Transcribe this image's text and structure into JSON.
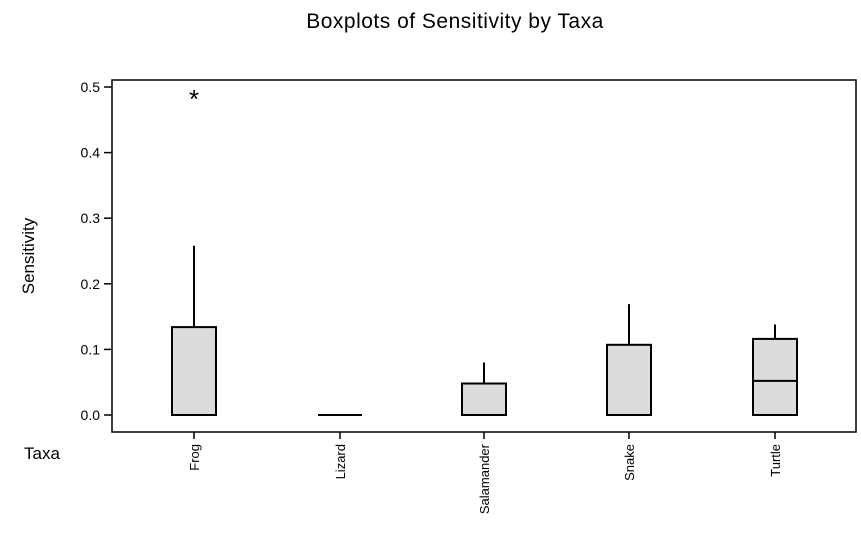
{
  "chart_data": {
    "type": "boxplot",
    "title": "Boxplots of Sensitivity by Taxa",
    "xlabel": "Taxa",
    "ylabel": "Sensitivity",
    "ylim": [
      -0.025,
      0.51
    ],
    "yticks": [
      0.0,
      0.1,
      0.2,
      0.3,
      0.4,
      0.5
    ],
    "ytick_labels": [
      "0.0",
      "0.1",
      "0.2",
      "0.3",
      "0.4",
      "0.5"
    ],
    "categories": [
      "Frog",
      "Lizard",
      "Salamander",
      "Snake",
      "Turtle"
    ],
    "boxes": [
      {
        "category": "Frog",
        "min": 0.0,
        "q1": 0.0,
        "median": 0.0,
        "q3": 0.134,
        "max": 0.258,
        "outliers": [
          0.486
        ]
      },
      {
        "category": "Lizard",
        "min": 0.0,
        "q1": 0.0,
        "median": 0.0,
        "q3": 0.0,
        "max": 0.0,
        "outliers": []
      },
      {
        "category": "Salamander",
        "min": 0.0,
        "q1": 0.0,
        "median": 0.0,
        "q3": 0.048,
        "max": 0.08,
        "outliers": []
      },
      {
        "category": "Snake",
        "min": 0.0,
        "q1": 0.0,
        "median": 0.0,
        "q3": 0.107,
        "max": 0.169,
        "outliers": []
      },
      {
        "category": "Turtle",
        "min": 0.0,
        "q1": 0.0,
        "median": 0.052,
        "q3": 0.116,
        "max": 0.138,
        "outliers": []
      }
    ],
    "box_fill": "#dcdcdc",
    "outlier_marker": "*",
    "grid": false,
    "legend": "none"
  }
}
